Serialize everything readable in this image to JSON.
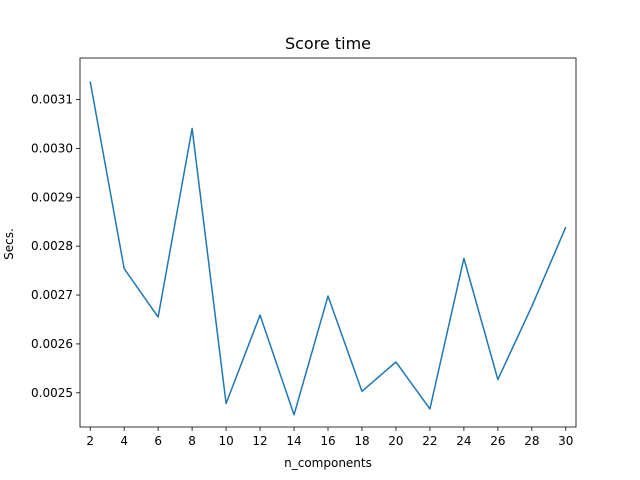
{
  "chart_data": {
    "type": "line",
    "title": "Score time",
    "xlabel": "n_components",
    "ylabel": "Secs.",
    "xlim": [
      1.4,
      30.6
    ],
    "ylim": [
      0.00243,
      0.003185
    ],
    "xticks": [
      2,
      4,
      6,
      8,
      10,
      12,
      14,
      16,
      18,
      20,
      22,
      24,
      26,
      28,
      30
    ],
    "xtick_labels": [
      "2",
      "4",
      "6",
      "8",
      "10",
      "12",
      "14",
      "16",
      "18",
      "20",
      "22",
      "24",
      "26",
      "28",
      "30"
    ],
    "yticks": [
      0.0025,
      0.0026,
      0.0027,
      0.0028,
      0.0029,
      0.003,
      0.0031
    ],
    "ytick_labels": [
      "0.0025",
      "0.0026",
      "0.0027",
      "0.0028",
      "0.0029",
      "0.0030",
      "0.0031"
    ],
    "grid": false,
    "series": [
      {
        "color": "#1f77b4",
        "x": [
          2,
          4,
          6,
          8,
          10,
          12,
          14,
          16,
          18,
          20,
          22,
          24,
          26,
          28,
          30
        ],
        "y": [
          0.003137,
          0.002754,
          0.002655,
          0.003041,
          0.002478,
          0.002659,
          0.002455,
          0.002698,
          0.002503,
          0.002563,
          0.002467,
          0.002775,
          0.002527,
          0.002677,
          0.002839
        ]
      }
    ]
  }
}
